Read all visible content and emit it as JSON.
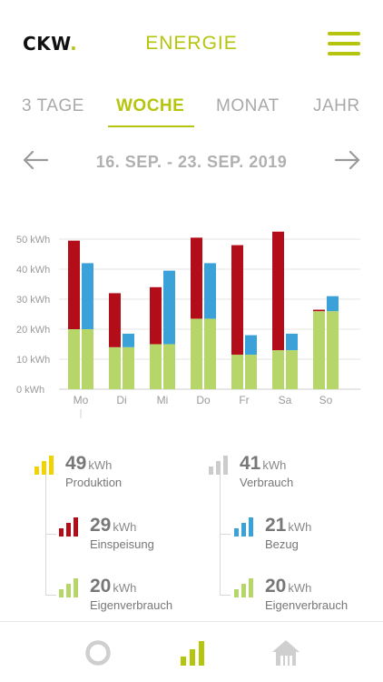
{
  "header": {
    "logo_text": "CKW",
    "logo_dot": ".",
    "title": "ENERGIE"
  },
  "tabs": [
    {
      "label": "3 TAGE",
      "active": false
    },
    {
      "label": "WOCHE",
      "active": true
    },
    {
      "label": "MONAT",
      "active": false
    },
    {
      "label": "JAHR",
      "active": false
    }
  ],
  "date_range": "16. SEP. - 23. SEP. 2019",
  "colors": {
    "brand_green": "#b5c50e",
    "einspeisung_red": "#b30d1a",
    "bezug_blue": "#3aa1d9",
    "eigenverbrauch_green": "#b7d66a",
    "produktion_yellow": "#f0d300",
    "verbrauch_gray": "#cccccc"
  },
  "chart_data": {
    "type": "bar",
    "categories": [
      "Mo",
      "Di",
      "Mi",
      "Do",
      "Fr",
      "Sa",
      "So"
    ],
    "ylim": [
      0,
      50
    ],
    "yticks": [
      "0 kWh",
      "10 kWh",
      "20 kWh",
      "30 kWh",
      "40 kWh",
      "50 kWh"
    ],
    "yticks_values": [
      0,
      10,
      20,
      30,
      40,
      50
    ],
    "grid": true,
    "series": [
      {
        "name": "Eigenverbrauch (Produktion)",
        "values": [
          20,
          14,
          15,
          23.5,
          11.5,
          13,
          26
        ]
      },
      {
        "name": "Einspeisung",
        "values": [
          29.5,
          18,
          19,
          27,
          36.5,
          39.5,
          0.5
        ]
      },
      {
        "name": "Eigenverbrauch (Verbrauch)",
        "values": [
          20,
          14,
          15,
          23.5,
          11.5,
          13,
          26
        ]
      },
      {
        "name": "Bezug",
        "values": [
          22,
          4.5,
          24.5,
          18.5,
          6.5,
          5.5,
          5
        ]
      }
    ]
  },
  "summary": {
    "produktion": {
      "value": "49",
      "unit": "kWh",
      "label": "Produktion"
    },
    "einspeisung": {
      "value": "29",
      "unit": "kWh",
      "label": "Einspeisung"
    },
    "eigenverbrauch_left": {
      "value": "20",
      "unit": "kWh",
      "label": "Eigenverbrauch"
    },
    "verbrauch": {
      "value": "41",
      "unit": "kWh",
      "label": "Verbrauch"
    },
    "bezug": {
      "value": "21",
      "unit": "kWh",
      "label": "Bezug"
    },
    "eigenverbrauch_right": {
      "value": "20",
      "unit": "kWh",
      "label": "Eigenverbrauch"
    }
  },
  "bottom_nav": [
    {
      "icon": "donut-chart-icon",
      "active": false
    },
    {
      "icon": "bar-chart-icon",
      "active": true
    },
    {
      "icon": "house-icon",
      "active": false
    }
  ]
}
